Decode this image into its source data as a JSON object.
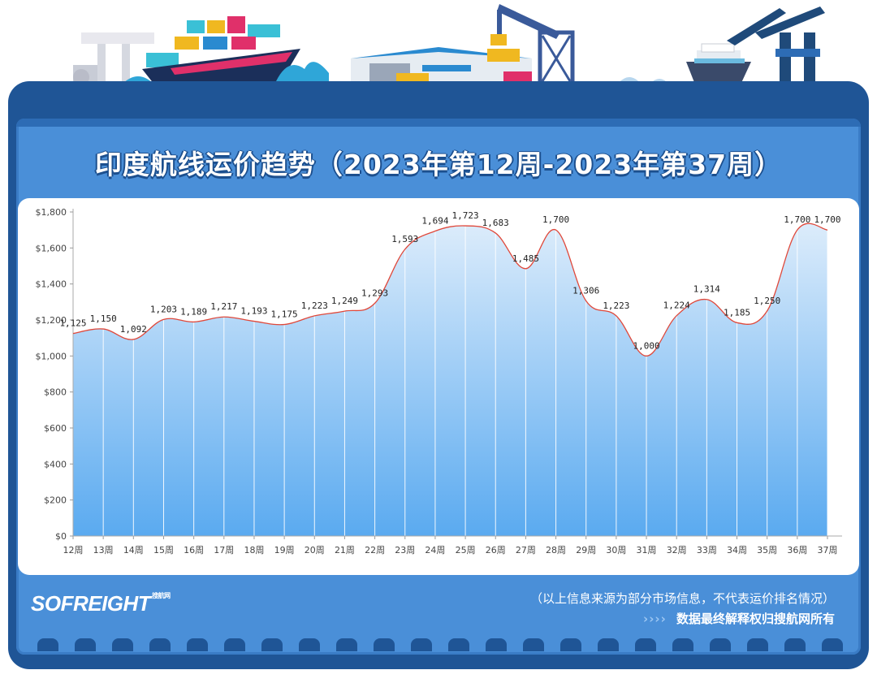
{
  "header": {
    "title": "印度航线运价趋势（2023年第12周-2023年第37周）"
  },
  "chart_data": {
    "type": "area",
    "title": "印度航线运价趋势（2023年第12周-2023年第37周）",
    "xlabel": "",
    "ylabel": "",
    "categories": [
      "12周",
      "13周",
      "14周",
      "15周",
      "16周",
      "17周",
      "18周",
      "19周",
      "20周",
      "21周",
      "22周",
      "23周",
      "24周",
      "25周",
      "26周",
      "27周",
      "28周",
      "29周",
      "30周",
      "31周",
      "32周",
      "33周",
      "34周",
      "35周",
      "36周",
      "37周"
    ],
    "values": [
      1125,
      1150,
      1092,
      1203,
      1189,
      1217,
      1193,
      1175,
      1223,
      1249,
      1293,
      1593,
      1694,
      1723,
      1683,
      1485,
      1700,
      1306,
      1223,
      1000,
      1224,
      1314,
      1185,
      1250,
      1700,
      1700
    ],
    "data_labels": [
      "1,125",
      "1,150",
      "1,092",
      "1,203",
      "1,189",
      "1,217",
      "1,193",
      "1,175",
      "1,223",
      "1,249",
      "1,293",
      "1,593",
      "1,694",
      "1,723",
      "1,683",
      "1,485",
      "1,700",
      "1,306",
      "1,223",
      "1,000",
      "1,224",
      "1,314",
      "1,185",
      "1,250",
      "1,700",
      "1,700"
    ],
    "ylim": [
      0,
      1800
    ],
    "yticks": [
      0,
      200,
      400,
      600,
      800,
      1000,
      1200,
      1400,
      1600,
      1800
    ],
    "ytick_labels": [
      "$0",
      "$200",
      "$400",
      "$600",
      "$800",
      "$1,000",
      "$1,200",
      "$1,400",
      "$1,600",
      "$1,800"
    ],
    "grid": "vertical",
    "legend": "none",
    "colors": {
      "line": "#e0483a",
      "fill_top": "#dcecfb",
      "fill_bottom": "#5aaaf0",
      "axis_text": "#444444"
    }
  },
  "footer": {
    "brand": "SOFREIGHT",
    "brand_sub": "搜航网",
    "note": "（以上信息来源为部分市场信息，不代表运价排名情况）",
    "credit_chevrons": "›››› ",
    "credit": "数据最终解释权归搜航网所有"
  },
  "colors": {
    "frame": "#1f5596",
    "panel": "#4a8fd8",
    "title": "#ffffff"
  }
}
